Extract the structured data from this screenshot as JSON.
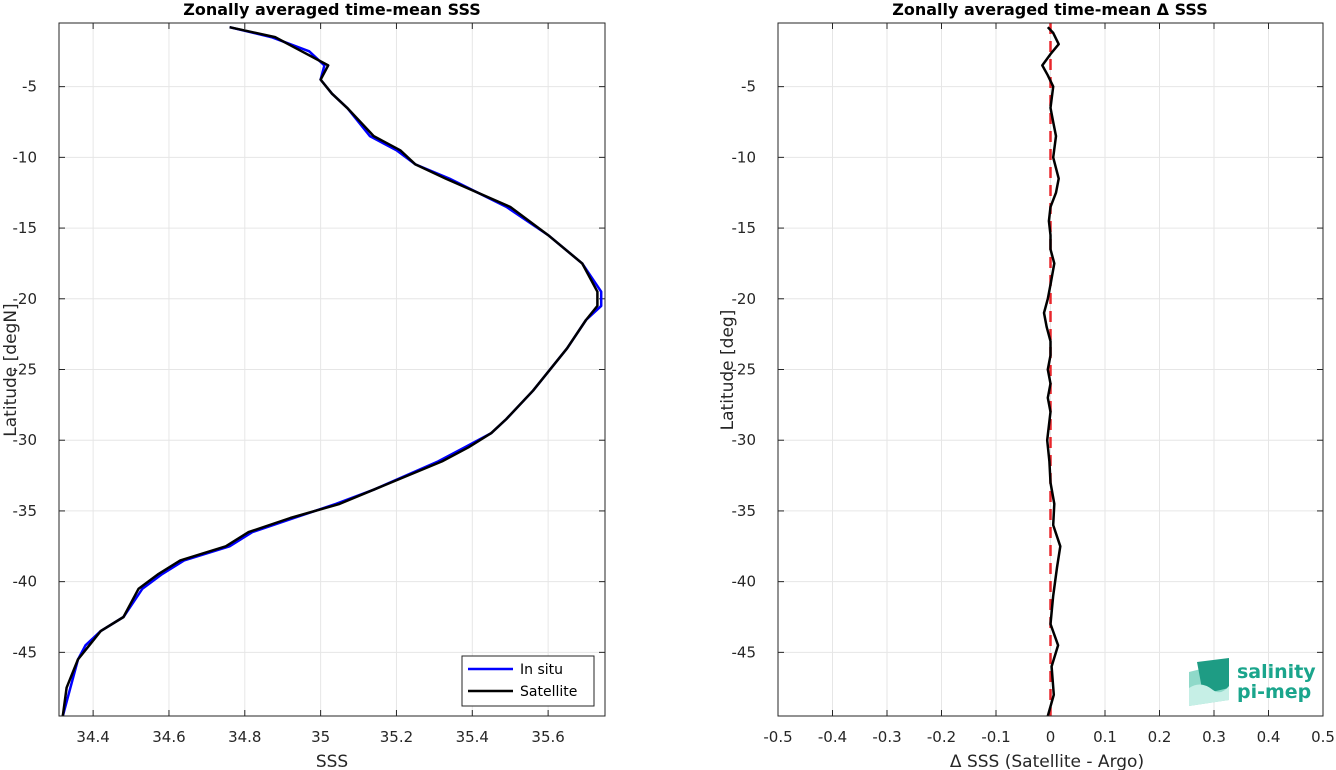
{
  "chart_data": [
    {
      "type": "line",
      "title": "Zonally averaged time-mean SSS",
      "xlabel": "SSS",
      "ylabel": "Latitude [degN]",
      "xlim": [
        34.31,
        35.75
      ],
      "ylim": [
        -49.5,
        -0.5
      ],
      "xticks": [
        34.4,
        34.6,
        34.8,
        35,
        35.2,
        35.4,
        35.6
      ],
      "xtick_labels": [
        "34.4",
        "34.6",
        "34.8",
        "35",
        "35.2",
        "35.4",
        "35.6"
      ],
      "yticks": [
        -5,
        -10,
        -15,
        -20,
        -25,
        -30,
        -35,
        -40,
        -45
      ],
      "ytick_labels": [
        "-5",
        "-10",
        "-15",
        "-20",
        "-25",
        "-30",
        "-35",
        "-40",
        "-45"
      ],
      "grid": true,
      "legend_position": "bottom-right",
      "series": [
        {
          "name": "In situ",
          "color": "#0000ff",
          "x": [
            34.76,
            34.87,
            34.97,
            35.01,
            35.0,
            35.03,
            35.07,
            35.13,
            35.2,
            35.25,
            35.34,
            35.49,
            35.6,
            35.69,
            35.74,
            35.74,
            35.7,
            35.65,
            35.56,
            35.49,
            35.45,
            35.38,
            35.31,
            35.14,
            35.04,
            34.93,
            34.82,
            34.76,
            34.64,
            34.58,
            34.53,
            34.48,
            34.42,
            34.38,
            34.36,
            34.34,
            34.32
          ],
          "y": [
            -0.8,
            -1.5,
            -2.5,
            -3.5,
            -4.5,
            -5.5,
            -6.5,
            -8.5,
            -9.5,
            -10.5,
            -11.5,
            -13.5,
            -15.5,
            -17.5,
            -19.5,
            -20.5,
            -21.5,
            -23.5,
            -26.5,
            -28.5,
            -29.5,
            -30.5,
            -31.5,
            -33.5,
            -34.5,
            -35.5,
            -36.5,
            -37.5,
            -38.5,
            -39.5,
            -40.5,
            -42.5,
            -43.5,
            -44.5,
            -45.5,
            -47.5,
            -49.5
          ]
        },
        {
          "name": "Satellite",
          "color": "#000000",
          "x": [
            34.76,
            34.88,
            34.95,
            35.02,
            35.0,
            35.03,
            35.07,
            35.14,
            35.21,
            35.25,
            35.33,
            35.5,
            35.6,
            35.69,
            35.73,
            35.73,
            35.7,
            35.65,
            35.56,
            35.49,
            35.45,
            35.39,
            35.32,
            35.14,
            35.05,
            34.92,
            34.81,
            34.75,
            34.63,
            34.57,
            34.52,
            34.48,
            34.42,
            34.39,
            34.36,
            34.33,
            34.32
          ],
          "y": [
            -0.8,
            -1.5,
            -2.5,
            -3.5,
            -4.5,
            -5.5,
            -6.5,
            -8.5,
            -9.5,
            -10.5,
            -11.5,
            -13.5,
            -15.5,
            -17.5,
            -19.5,
            -20.5,
            -21.5,
            -23.5,
            -26.5,
            -28.5,
            -29.5,
            -30.5,
            -31.5,
            -33.5,
            -34.5,
            -35.5,
            -36.5,
            -37.5,
            -38.5,
            -39.5,
            -40.5,
            -42.5,
            -43.5,
            -44.5,
            -45.5,
            -47.5,
            -49.5
          ]
        }
      ]
    },
    {
      "type": "line",
      "title": "Zonally averaged time-mean Δ SSS",
      "xlabel": "Δ SSS (Satellite - Argo)",
      "ylabel": "Latitude [deg]",
      "xlim": [
        -0.5,
        0.5
      ],
      "ylim": [
        -49.5,
        -0.5
      ],
      "xticks": [
        -0.5,
        -0.4,
        -0.3,
        -0.2,
        -0.1,
        0,
        0.1,
        0.2,
        0.3,
        0.4,
        0.5
      ],
      "xtick_labels": [
        "-0.5",
        "-0.4",
        "-0.3",
        "-0.2",
        "-0.1",
        "0",
        "0.1",
        "0.2",
        "0.3",
        "0.4",
        "0.5"
      ],
      "yticks": [
        -5,
        -10,
        -15,
        -20,
        -25,
        -30,
        -35,
        -40,
        -45
      ],
      "ytick_labels": [
        "-5",
        "-10",
        "-15",
        "-20",
        "-25",
        "-30",
        "-35",
        "-40",
        "-45"
      ],
      "grid": true,
      "reference_line": {
        "x": 0,
        "color": "#e8262b",
        "style": "dashed"
      },
      "series": [
        {
          "color": "#000000",
          "x": [
            -0.005,
            0.005,
            0.015,
            0.0,
            -0.015,
            -0.005,
            0.005,
            0.0,
            0.005,
            0.01,
            0.005,
            0.015,
            0.01,
            0.0,
            -0.003,
            0.0,
            0.0,
            0.007,
            0.0,
            -0.005,
            -0.012,
            -0.007,
            0.0,
            0.0,
            -0.005,
            0.0,
            -0.005,
            0.0,
            -0.006,
            -0.002,
            0.0,
            0.007,
            0.005,
            0.018,
            0.012,
            0.005,
            0.0,
            0.014,
            0.002,
            0.006,
            -0.005
          ],
          "y": [
            -0.8,
            -1.2,
            -2.0,
            -2.7,
            -3.5,
            -4.2,
            -5.0,
            -6.5,
            -7.5,
            -8.5,
            -10.0,
            -11.5,
            -12.5,
            -13.5,
            -14.5,
            -15.5,
            -16.5,
            -17.5,
            -19.0,
            -20.0,
            -21.0,
            -22.0,
            -23.0,
            -24.0,
            -25.0,
            -26.0,
            -27.0,
            -28.0,
            -30.0,
            -31.5,
            -33.0,
            -34.5,
            -36.0,
            -37.5,
            -39.0,
            -41.0,
            -43.0,
            -44.5,
            -46.0,
            -48.0,
            -49.5
          ]
        }
      ]
    }
  ],
  "logo": {
    "line1": "salinity",
    "line2": "pi-mep"
  }
}
